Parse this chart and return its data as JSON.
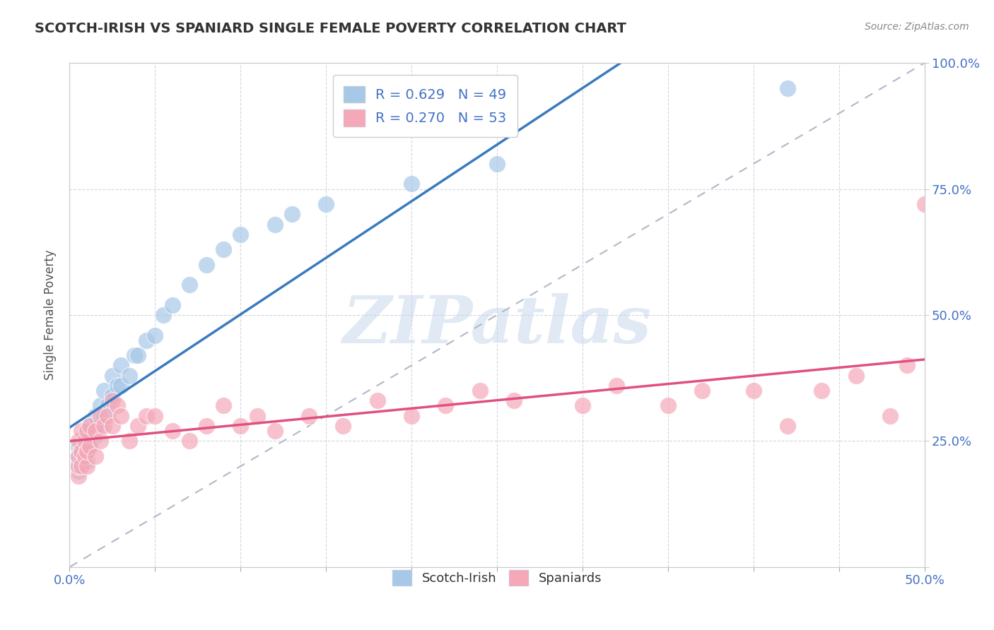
{
  "title": "SCOTCH-IRISH VS SPANIARD SINGLE FEMALE POVERTY CORRELATION CHART",
  "source": "Source: ZipAtlas.com",
  "ylabel": "Single Female Poverty",
  "xlim": [
    0.0,
    0.5
  ],
  "ylim": [
    0.0,
    1.0
  ],
  "xticks": [
    0.0,
    0.05,
    0.1,
    0.15,
    0.2,
    0.25,
    0.3,
    0.35,
    0.4,
    0.45,
    0.5
  ],
  "yticks": [
    0.0,
    0.25,
    0.5,
    0.75,
    1.0
  ],
  "scotch_irish_color": "#a8c8e8",
  "spaniard_color": "#f4a8b8",
  "scotch_irish_R": 0.629,
  "scotch_irish_N": 49,
  "spaniard_R": 0.27,
  "spaniard_N": 53,
  "scotch_irish_line_color": "#3a7abf",
  "spaniard_line_color": "#e05080",
  "ref_line_color": "#b0b8c8",
  "watermark": "ZIPatlas",
  "tick_color": "#4472c4",
  "scotch_irish_x": [
    0.005,
    0.005,
    0.005,
    0.005,
    0.005,
    0.007,
    0.007,
    0.007,
    0.007,
    0.009,
    0.009,
    0.009,
    0.01,
    0.01,
    0.01,
    0.01,
    0.012,
    0.012,
    0.012,
    0.015,
    0.015,
    0.015,
    0.018,
    0.018,
    0.02,
    0.02,
    0.022,
    0.025,
    0.025,
    0.028,
    0.03,
    0.03,
    0.035,
    0.038,
    0.04,
    0.045,
    0.05,
    0.055,
    0.06,
    0.07,
    0.08,
    0.09,
    0.1,
    0.12,
    0.13,
    0.15,
    0.2,
    0.25,
    0.42
  ],
  "scotch_irish_y": [
    0.19,
    0.2,
    0.21,
    0.22,
    0.24,
    0.2,
    0.22,
    0.23,
    0.25,
    0.22,
    0.24,
    0.26,
    0.21,
    0.23,
    0.25,
    0.27,
    0.24,
    0.26,
    0.28,
    0.26,
    0.28,
    0.3,
    0.28,
    0.32,
    0.3,
    0.35,
    0.32,
    0.34,
    0.38,
    0.36,
    0.36,
    0.4,
    0.38,
    0.42,
    0.42,
    0.45,
    0.46,
    0.5,
    0.52,
    0.56,
    0.6,
    0.63,
    0.66,
    0.68,
    0.7,
    0.72,
    0.76,
    0.8,
    0.95
  ],
  "spaniard_x": [
    0.005,
    0.005,
    0.005,
    0.005,
    0.007,
    0.007,
    0.007,
    0.009,
    0.009,
    0.01,
    0.01,
    0.01,
    0.012,
    0.012,
    0.015,
    0.015,
    0.018,
    0.018,
    0.02,
    0.022,
    0.025,
    0.025,
    0.028,
    0.03,
    0.035,
    0.04,
    0.045,
    0.05,
    0.06,
    0.07,
    0.08,
    0.09,
    0.1,
    0.11,
    0.12,
    0.14,
    0.16,
    0.18,
    0.2,
    0.22,
    0.24,
    0.26,
    0.3,
    0.32,
    0.35,
    0.37,
    0.4,
    0.42,
    0.44,
    0.46,
    0.48,
    0.49,
    0.5
  ],
  "spaniard_y": [
    0.18,
    0.2,
    0.22,
    0.25,
    0.2,
    0.23,
    0.27,
    0.22,
    0.25,
    0.2,
    0.23,
    0.27,
    0.24,
    0.28,
    0.22,
    0.27,
    0.25,
    0.3,
    0.28,
    0.3,
    0.28,
    0.33,
    0.32,
    0.3,
    0.25,
    0.28,
    0.3,
    0.3,
    0.27,
    0.25,
    0.28,
    0.32,
    0.28,
    0.3,
    0.27,
    0.3,
    0.28,
    0.33,
    0.3,
    0.32,
    0.35,
    0.33,
    0.32,
    0.36,
    0.32,
    0.35,
    0.35,
    0.28,
    0.35,
    0.38,
    0.3,
    0.4,
    0.72
  ]
}
